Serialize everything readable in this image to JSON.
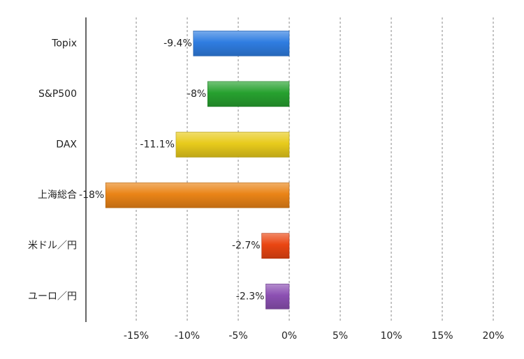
{
  "chart_data": {
    "type": "bar",
    "orientation": "horizontal",
    "title": "",
    "xlabel": "",
    "ylabel": "",
    "categories": [
      "Topix",
      "S&P500",
      "DAX",
      "上海総合",
      "米ドル／円",
      "ユーロ／円"
    ],
    "values": [
      -9.4,
      -8,
      -11.1,
      -18,
      -2.7,
      -2.3
    ],
    "data_labels": [
      "-9.4%",
      "-8%",
      "-11.1%",
      "-18%",
      "-2.7%",
      "-2.3%"
    ],
    "colors": [
      "#2f7de1",
      "#27a12f",
      "#e8cb1c",
      "#ea8417",
      "#ea4612",
      "#8c50b3"
    ],
    "xlim": [
      -20,
      20
    ],
    "x_ticks": [
      -15,
      -10,
      -5,
      0,
      5,
      10,
      15,
      20
    ],
    "x_tick_labels": [
      "-15%",
      "-10%",
      "-5%",
      "0%",
      "5%",
      "10%",
      "15%",
      "20%"
    ],
    "grid": "vertical dashed",
    "legend": "none"
  }
}
